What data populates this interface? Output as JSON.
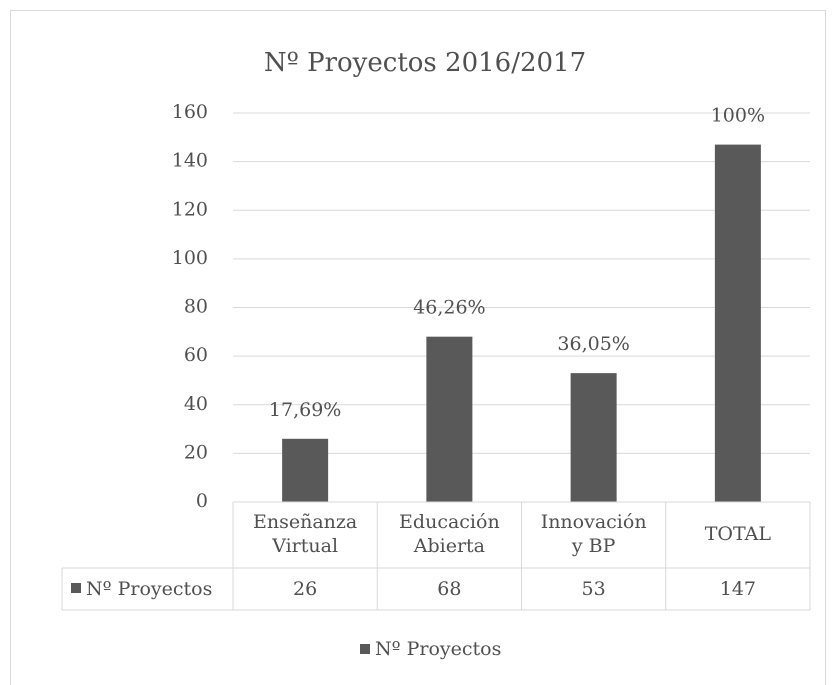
{
  "chart_data": {
    "type": "bar",
    "title": "Nº Proyectos 2016/2017",
    "categories": [
      [
        "Enseñanza",
        "Virtual"
      ],
      [
        "Educación",
        "Abierta"
      ],
      [
        "Innovación",
        "y BP"
      ],
      [
        "TOTAL"
      ]
    ],
    "series": [
      {
        "name": "Nº Proyectos",
        "color": "#595959",
        "values": [
          26,
          68,
          53,
          147
        ]
      }
    ],
    "data_labels": [
      "17,69%",
      "46,26%",
      "36,05%",
      "100%"
    ],
    "ylim": [
      0,
      160
    ],
    "yticks": [
      0,
      20,
      40,
      60,
      80,
      100,
      120,
      140,
      160
    ],
    "grid": true,
    "legend": "bottom",
    "data_table": true
  }
}
